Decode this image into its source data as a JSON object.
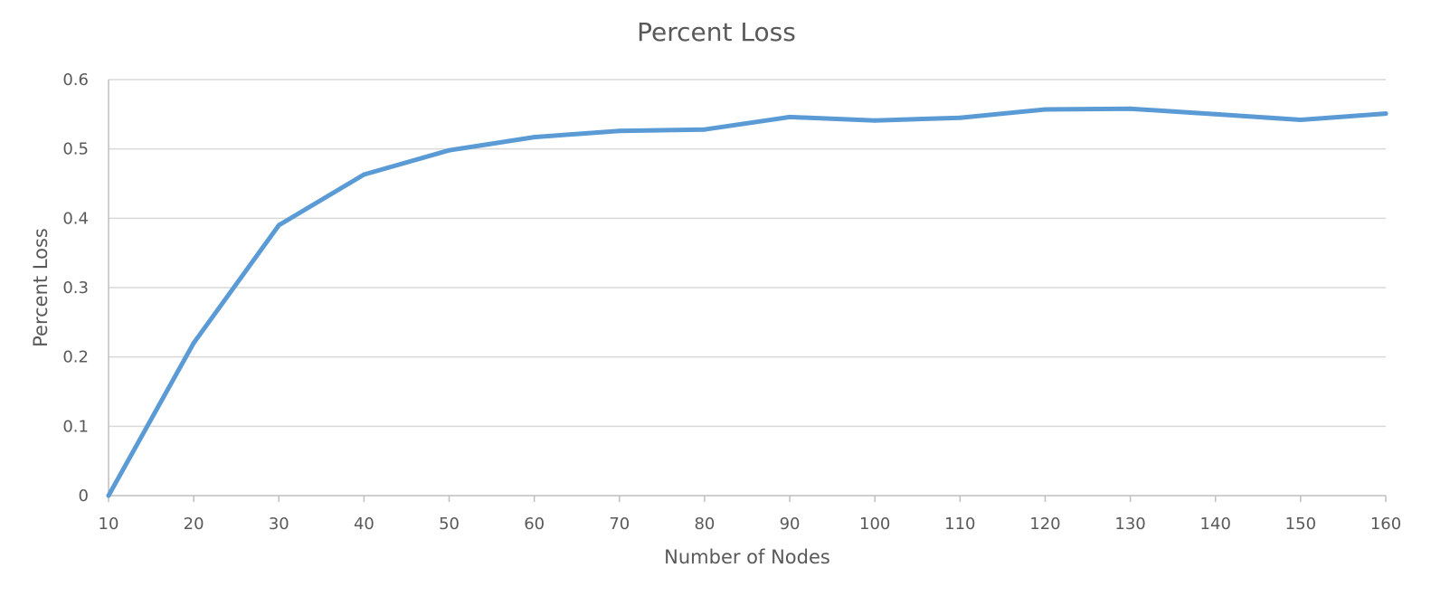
{
  "chart_data": {
    "type": "line",
    "title": "Percent Loss",
    "xlabel": "Number of Nodes",
    "ylabel": "Percent Loss",
    "x": [
      10,
      20,
      30,
      40,
      50,
      60,
      70,
      80,
      90,
      100,
      110,
      120,
      130,
      140,
      150,
      160
    ],
    "x_tick_labels": [
      "10",
      "20",
      "30",
      "40",
      "50",
      "60",
      "70",
      "80",
      "90",
      "100",
      "110",
      "120",
      "130",
      "140",
      "150",
      "160"
    ],
    "y_tick_labels": [
      "0",
      "0.1",
      "0.2",
      "0.3",
      "0.4",
      "0.5",
      "0.6"
    ],
    "ylim": [
      0,
      0.6
    ],
    "xlim": [
      10,
      160
    ],
    "grid": true,
    "legend": "none",
    "series": [
      {
        "color": "#5b9bd5",
        "values": [
          0.0,
          0.22,
          0.39,
          0.463,
          0.498,
          0.517,
          0.526,
          0.528,
          0.546,
          0.541,
          0.545,
          0.557,
          0.558,
          0.55,
          0.542,
          0.551
        ]
      }
    ]
  }
}
